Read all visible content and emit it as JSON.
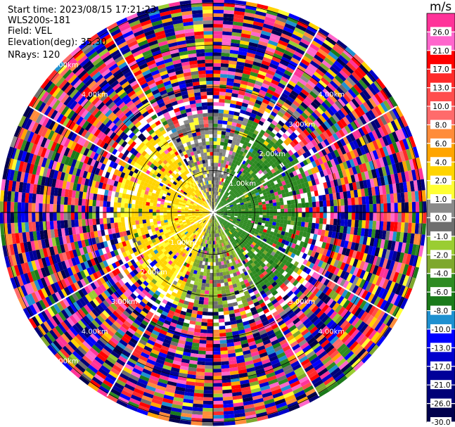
{
  "header": {
    "start_time": "Start time: 2023/08/15 17:21:23",
    "site": "WLS200s-181",
    "field": "Field: VEL",
    "elevation": "Elevation(deg): 35.30",
    "nrays": "NRays: 120"
  },
  "colorbar": {
    "unit": "m/s",
    "tick_labels": [
      "26.0",
      "21.0",
      "17.0",
      "13.0",
      "10.0",
      "8.0",
      "6.0",
      "4.0",
      "2.0",
      "1.0",
      "0.0",
      "-1.0",
      "-2.0",
      "-4.0",
      "-6.0",
      "-8.0",
      "-10.0",
      "-13.0",
      "-17.0",
      "-21.0",
      "-26.0",
      "-30.0"
    ],
    "bins": [
      {
        "from": 26,
        "to": 30,
        "color": "#ff3399"
      },
      {
        "from": 21,
        "to": 26,
        "color": "#ff66cc"
      },
      {
        "from": 17,
        "to": 21,
        "color": "#ff0000"
      },
      {
        "from": 13,
        "to": 17,
        "color": "#ff2a2a"
      },
      {
        "from": 10,
        "to": 13,
        "color": "#ff4d4d"
      },
      {
        "from": 8,
        "to": 10,
        "color": "#ff6b6b"
      },
      {
        "from": 6,
        "to": 8,
        "color": "#ff8c3a"
      },
      {
        "from": 4,
        "to": 6,
        "color": "#ffa500"
      },
      {
        "from": 2,
        "to": 4,
        "color": "#ffd400"
      },
      {
        "from": 1,
        "to": 2,
        "color": "#ffff33"
      },
      {
        "from": 0,
        "to": 1,
        "color": "#8a8a8a"
      },
      {
        "from": -1,
        "to": 0,
        "color": "#6e6e6e"
      },
      {
        "from": -2,
        "to": -1,
        "color": "#9acd32"
      },
      {
        "from": -4,
        "to": -2,
        "color": "#7ea82d"
      },
      {
        "from": -6,
        "to": -4,
        "color": "#2e8b22"
      },
      {
        "from": -8,
        "to": -6,
        "color": "#1a7a1a"
      },
      {
        "from": -10,
        "to": -8,
        "color": "#1e90d0"
      },
      {
        "from": -13,
        "to": -10,
        "color": "#0000ff"
      },
      {
        "from": -17,
        "to": -13,
        "color": "#0000cc"
      },
      {
        "from": -21,
        "to": -17,
        "color": "#000099"
      },
      {
        "from": -26,
        "to": -21,
        "color": "#000077"
      },
      {
        "from": -30,
        "to": -26,
        "color": "#00004d"
      }
    ]
  },
  "chart_data": {
    "type": "heatmap",
    "subtype": "polar PPI",
    "field": "VEL",
    "unit": "m/s",
    "nrays": 120,
    "elevation_deg": 35.3,
    "range_rings_km": [
      1.0,
      2.0,
      3.0,
      4.0,
      5.0
    ],
    "range_ring_labels": [
      "1.00km",
      "2.00km",
      "3.00km",
      "4.00km",
      "5.00km"
    ],
    "visible_ring_labels": [
      {
        "text": "1.00km",
        "ring_km": 1.0,
        "angle_deg": 45
      },
      {
        "text": "1.00km",
        "ring_km": 1.0,
        "angle_deg": 225
      },
      {
        "text": "2.00km",
        "ring_km": 2.0,
        "angle_deg": 45
      },
      {
        "text": "2.00km",
        "ring_km": 2.0,
        "angle_deg": 225
      },
      {
        "text": "3.00km",
        "ring_km": 3.0,
        "angle_deg": 45
      },
      {
        "text": "3.00km",
        "ring_km": 3.0,
        "angle_deg": 225
      },
      {
        "text": "3.00km",
        "ring_km": 3.0,
        "angle_deg": 135
      },
      {
        "text": "4.00km",
        "ring_km": 4.0,
        "angle_deg": 315
      },
      {
        "text": "4.00km",
        "ring_km": 4.0,
        "angle_deg": 45
      },
      {
        "text": "4.00km",
        "ring_km": 4.0,
        "angle_deg": 225
      },
      {
        "text": "4.00km",
        "ring_km": 4.0,
        "angle_deg": 135
      },
      {
        "text": "5.00km",
        "ring_km": 5.0,
        "angle_deg": 315
      },
      {
        "text": "5.00km",
        "ring_km": 5.0,
        "angle_deg": 225
      }
    ],
    "spokes_deg": [
      0,
      30,
      60,
      90,
      120,
      150,
      180,
      210,
      240,
      270,
      300,
      330
    ],
    "pattern": {
      "near_field_max_km": 2.3,
      "west_sector_velocity": 2.5,
      "north_sector_velocity": 0.3,
      "east_sector_velocity": -5.0,
      "south_sector_velocity": -1.5,
      "far_field": "noise across all velocity bins"
    }
  }
}
